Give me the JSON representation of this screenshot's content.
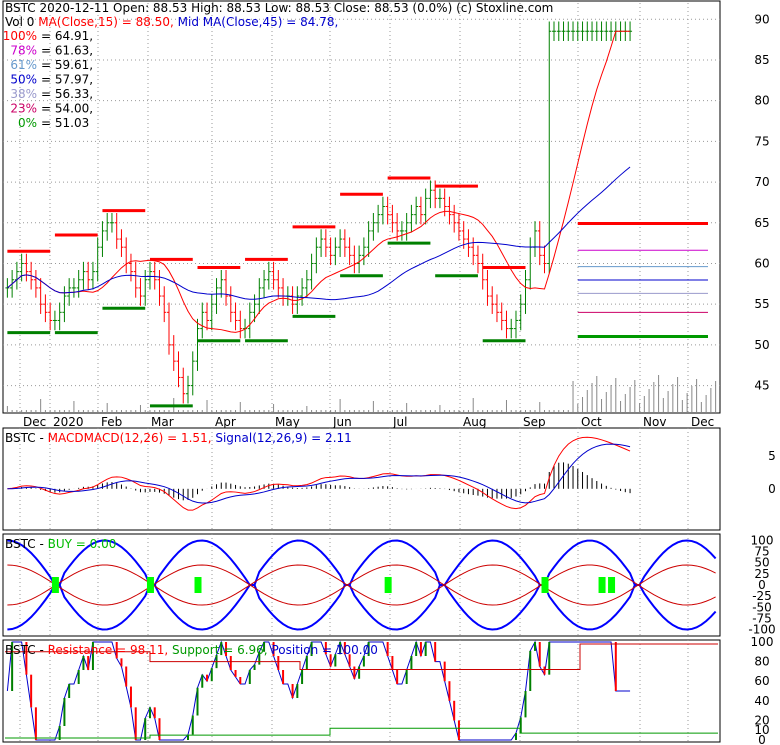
{
  "header": {
    "line1_a": "BSTC  2020-12-11 Open: 88.53  High: 88.53  Low: 88.53  Close: 88.53 (0.0%)",
    "line1_b": "(c) Stoxline.com",
    "vol": "Vol 0",
    "ma15": "MA(Close,15) = 88.50,",
    "ma45": "Mid MA(Close,45) = 84.78,"
  },
  "fib_levels": [
    {
      "label": "100%",
      "value": "= 64.91,",
      "color": "#ff0000",
      "price": 64.91
    },
    {
      "label": "78%",
      "value": "= 61.63,",
      "color": "#cc00cc",
      "price": 61.63
    },
    {
      "label": "61%",
      "value": "= 59.61,",
      "color": "#6699cc",
      "price": 59.61
    },
    {
      "label": "50%",
      "value": "= 57.97,",
      "color": "#0000cc",
      "price": 57.97
    },
    {
      "label": "38%",
      "value": "= 56.33,",
      "color": "#9999cc",
      "price": 56.33
    },
    {
      "label": "23%",
      "value": "= 54.00,",
      "color": "#cc0066",
      "price": 54.0
    },
    {
      "label": "0%",
      "value": "= 51.03",
      "color": "#009900",
      "price": 51.03
    }
  ],
  "panels": {
    "macd": {
      "ticker": "BSTC",
      "name": "MACD",
      "label": "MACD(12,26) = 1.51,",
      "signal": "Signal(12,26,9) = 2.11"
    },
    "buy": {
      "ticker": "BSTC",
      "label": "BUY = 0.00"
    },
    "res": {
      "ticker": "BSTC",
      "resistance": "Resistance = 98.11,",
      "support": "Support = 6.96,",
      "position": "Position = 100.00"
    }
  },
  "colors": {
    "price_up": "#008000",
    "price_down": "#ff0000",
    "ma15": "#ff0000",
    "ma45": "#0000cc",
    "resist": "#ff0000",
    "support": "#008000",
    "buy_band": "#0000ff",
    "buy_marker": "#00ff00"
  },
  "chart_data": [
    {
      "type": "ohlc",
      "x_tick_labels": [
        "Dec",
        "2020",
        "Feb",
        "Mar",
        "Apr",
        "May",
        "Jun",
        "Jul",
        "Aug",
        "Sep",
        "Oct",
        "Nov",
        "Dec"
      ],
      "y_ticks": [
        45,
        50,
        55,
        60,
        65,
        70,
        75,
        80,
        85,
        90
      ],
      "ylim": [
        42,
        92
      ],
      "close_series": [
        57,
        58,
        59,
        60,
        59,
        58,
        57,
        55,
        54,
        53,
        53,
        54,
        56,
        57,
        57,
        58,
        59,
        58,
        59,
        62,
        64,
        65,
        65,
        63,
        62,
        60,
        59,
        57,
        56,
        58,
        59,
        58,
        56,
        54,
        50,
        48,
        46,
        44,
        45,
        48,
        52,
        54,
        53,
        55,
        57,
        58,
        56,
        54,
        53,
        52,
        52,
        54,
        55,
        57,
        58,
        59,
        58,
        57,
        56,
        56,
        55,
        56,
        57,
        58,
        60,
        62,
        63,
        62,
        61,
        62,
        63,
        62,
        61,
        60,
        61,
        62,
        64,
        65,
        66,
        67,
        66,
        65,
        64,
        64,
        65,
        66,
        67,
        66,
        68,
        69,
        68,
        68,
        67,
        66,
        65,
        64,
        63,
        62,
        61,
        60,
        58,
        56,
        55,
        54,
        53,
        52,
        52,
        53,
        55,
        58,
        62,
        64,
        61,
        60,
        88.53,
        88.53,
        88.53,
        88.53,
        88.53,
        88.53,
        88.53,
        88.53,
        88.53,
        88.53,
        88.53,
        88.53,
        88.53,
        88.53,
        88.53,
        88.53,
        88.53,
        88.53
      ],
      "last_close": 88.53
    },
    {
      "type": "line",
      "panel": "MACD",
      "y_ticks": [
        0,
        5
      ],
      "macd_last": 1.51,
      "signal_last": 2.11
    },
    {
      "type": "line",
      "panel": "BUY",
      "y_ticks": [
        -100,
        -75,
        -50,
        -25,
        0,
        25,
        50,
        75,
        100
      ],
      "buy_last": 0.0
    },
    {
      "type": "line",
      "panel": "Resistance/Support/Position",
      "y_ticks": [
        0,
        10,
        20,
        40,
        60,
        80,
        100
      ],
      "resistance_last": 98.11,
      "support_last": 6.96,
      "position_last": 100.0
    }
  ]
}
